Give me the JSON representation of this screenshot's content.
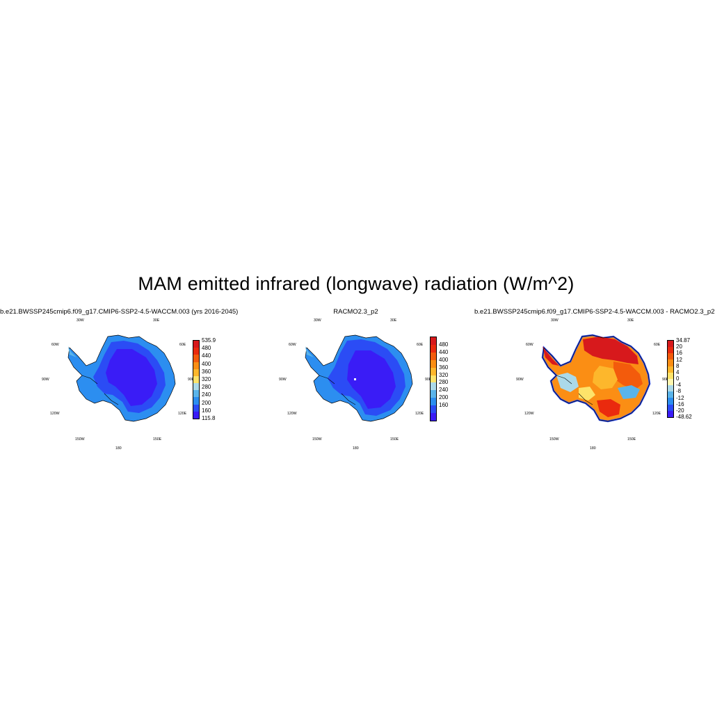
{
  "title": "MAM emitted infrared (longwave) radiation (W/m^2)",
  "panels": [
    {
      "title": "b.e21.BWSSP245cmip6.f09_g17.CMIP6-SSP2-4.5-WACCM.003 (yrs 2016-2045)",
      "colorbar": {
        "labels": [
          "535.9",
          "480",
          "440",
          "400",
          "360",
          "320",
          "280",
          "240",
          "200",
          "160",
          "115.8"
        ],
        "colors": [
          "#d7191c",
          "#ea2a0e",
          "#f35b0c",
          "#fb8e14",
          "#fdb72c",
          "#fde36a",
          "#abd9e9",
          "#5ab4ea",
          "#2c8ef0",
          "#2b4cf5",
          "#3a1cf6"
        ]
      }
    },
    {
      "title": "RACMO2.3_p2",
      "colorbar": {
        "labels": [
          "480",
          "440",
          "400",
          "360",
          "320",
          "280",
          "240",
          "200",
          "160"
        ],
        "colors": [
          "#d7191c",
          "#ea2a0e",
          "#f35b0c",
          "#fb8e14",
          "#fdb72c",
          "#fde36a",
          "#abd9e9",
          "#5ab4ea",
          "#2c8ef0",
          "#2b4cf5",
          "#3a1cf6"
        ]
      }
    },
    {
      "title": "b.e21.BWSSP245cmip6.f09_g17.CMIP6-SSP2-4.5-WACCM.003 - RACMO2.3_p2",
      "colorbar": {
        "labels": [
          "34.87",
          "20",
          "16",
          "12",
          "8",
          "4",
          "0",
          "-4",
          "-8",
          "-12",
          "-16",
          "-20",
          "-48.62"
        ],
        "colors": [
          "#d7191c",
          "#ea2a0e",
          "#f35b0c",
          "#fb8e14",
          "#fdb72c",
          "#fde36a",
          "#fff7b0",
          "#abd9e9",
          "#5ab4ea",
          "#2c8ef0",
          "#2b4cf5",
          "#3a1cf6"
        ]
      }
    }
  ],
  "map_labels": {
    "lon_30w": "30W",
    "lon_30e": "30E",
    "lon_60w": "60W",
    "lon_60e": "60E",
    "lon_90w": "90W",
    "lon_90e": "90E",
    "lon_120w": "120W",
    "lon_120e": "120E",
    "lon_150w": "150W",
    "lon_150e": "150E",
    "lon_180": "180"
  }
}
